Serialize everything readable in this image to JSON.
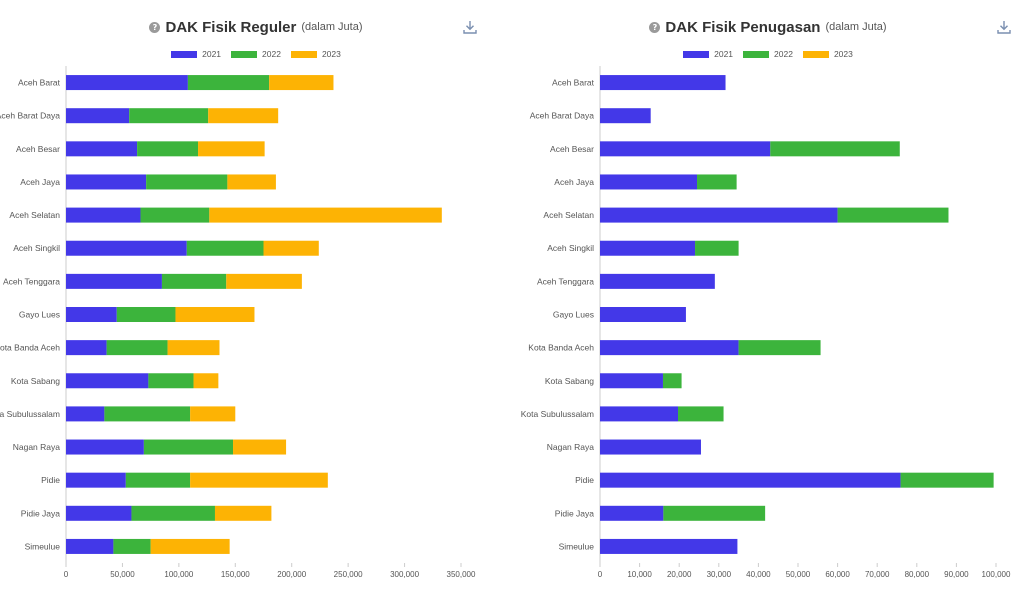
{
  "charts": [
    {
      "title": "DAK Fisik Reguler",
      "subtitle": "(dalam Juta)",
      "icons": {
        "help": "help-circle-icon",
        "download": "download-icon"
      },
      "help_glyph": "?",
      "chart_data": {
        "type": "bar",
        "orientation": "horizontal",
        "stacked": true,
        "title": "DAK Fisik Reguler",
        "subtitle": "(dalam Juta)",
        "categories": [
          "Aceh Barat",
          "Aceh Barat Daya",
          "Aceh Besar",
          "Aceh Jaya",
          "Aceh Selatan",
          "Aceh Singkil",
          "Aceh Tenggara",
          "Gayo Lues",
          "Kota Banda Aceh",
          "Kota Sabang",
          "Kota Subulussalam",
          "Nagan Raya",
          "Pidie",
          "Pidie Jaya",
          "Simeulue"
        ],
        "series": [
          {
            "name": "2021",
            "color": "#4338e8",
            "values": [
              108000,
              56000,
              63000,
              71000,
              66000,
              107000,
              85000,
              45000,
              36000,
              73000,
              34000,
              69000,
              53000,
              58000,
              42000
            ]
          },
          {
            "name": "2022",
            "color": "#3cb43c",
            "values": [
              72000,
              70000,
              54000,
              72000,
              61000,
              68000,
              57000,
              52000,
              54000,
              40000,
              76000,
              79000,
              57000,
              74000,
              33000
            ]
          },
          {
            "name": "2023",
            "color": "#fdb304",
            "values": [
              57000,
              62000,
              59000,
              43000,
              206000,
              49000,
              67000,
              70000,
              46000,
              22000,
              40000,
              47000,
              122000,
              50000,
              70000
            ]
          }
        ],
        "xlim": [
          0,
          350000
        ],
        "xticks": [
          0,
          50000,
          100000,
          150000,
          200000,
          250000,
          300000,
          350000
        ],
        "xtick_labels": [
          "0",
          "50,000",
          "100,000",
          "150,000",
          "200,000",
          "250,000",
          "300,000",
          "350,000"
        ],
        "legend_position": "top-center",
        "grid": false
      }
    },
    {
      "title": "DAK Fisik Penugasan",
      "subtitle": "(dalam Juta)",
      "icons": {
        "help": "help-circle-icon",
        "download": "download-icon"
      },
      "help_glyph": "?",
      "chart_data": {
        "type": "bar",
        "orientation": "horizontal",
        "stacked": true,
        "title": "DAK Fisik Penugasan",
        "subtitle": "(dalam Juta)",
        "categories": [
          "Aceh Barat",
          "Aceh Barat Daya",
          "Aceh Besar",
          "Aceh Jaya",
          "Aceh Selatan",
          "Aceh Singkil",
          "Aceh Tenggara",
          "Gayo Lues",
          "Kota Banda Aceh",
          "Kota Sabang",
          "Kota Subulussalam",
          "Nagan Raya",
          "Pidie",
          "Pidie Jaya",
          "Simeulue"
        ],
        "series": [
          {
            "name": "2021",
            "color": "#4338e8",
            "values": [
              31700,
              12800,
              43000,
              24500,
              60000,
              24000,
              29000,
              21700,
              35000,
              15900,
              19700,
              25500,
              75900,
              16000,
              34700
            ]
          },
          {
            "name": "2022",
            "color": "#3cb43c",
            "values": [
              0,
              0,
              32700,
              10000,
              28000,
              11000,
              0,
              0,
              20700,
              4700,
              11500,
              0,
              23500,
              25700,
              0
            ]
          },
          {
            "name": "2023",
            "color": "#fdb304",
            "values": [
              0,
              0,
              0,
              0,
              0,
              0,
              0,
              0,
              0,
              0,
              0,
              0,
              0,
              0,
              0
            ]
          }
        ],
        "xlim": [
          0,
          100000
        ],
        "xticks": [
          0,
          10000,
          20000,
          30000,
          40000,
          50000,
          60000,
          70000,
          80000,
          90000,
          100000
        ],
        "xtick_labels": [
          "0",
          "10,000",
          "20,000",
          "30,000",
          "40,000",
          "50,000",
          "60,000",
          "70,000",
          "80,000",
          "90,000",
          "100,000"
        ],
        "legend_position": "top-center",
        "grid": false
      }
    }
  ]
}
